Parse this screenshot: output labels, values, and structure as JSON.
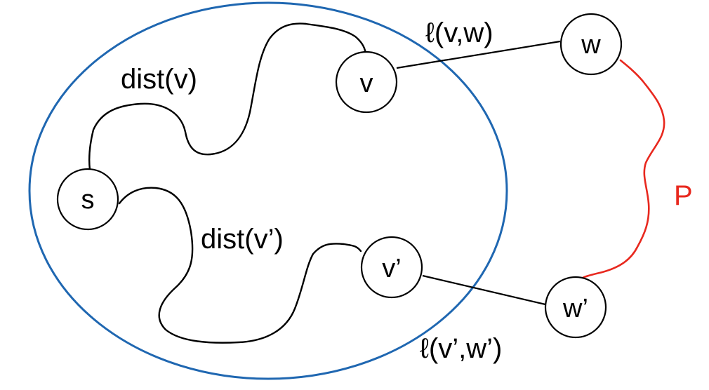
{
  "colors": {
    "region_stroke": "#1f67b1",
    "path_stroke": "#e8281e",
    "path_label": "#e8281e",
    "ink": "#000000"
  },
  "nodes": {
    "s": {
      "label": "s"
    },
    "v": {
      "label": "v"
    },
    "v_prime": {
      "label": "v’"
    },
    "w": {
      "label": "w"
    },
    "w_prime": {
      "label": "w’"
    }
  },
  "labels": {
    "dist_v": "dist(v)",
    "dist_v_prime": "dist(v’)",
    "edge_v_w": "ℓ(v,w)",
    "edge_vp_wp": "ℓ(v’,w’)",
    "path_p": "P"
  }
}
